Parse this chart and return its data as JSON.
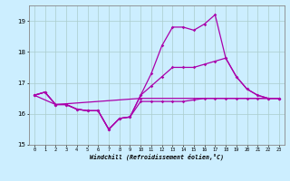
{
  "xlabel": "Windchill (Refroidissement éolien,°C)",
  "bg_color": "#cceeff",
  "line_color": "#aa00aa",
  "grid_color": "#aacccc",
  "xlim": [
    -0.5,
    23.5
  ],
  "ylim": [
    15,
    19.5
  ],
  "yticks": [
    15,
    16,
    17,
    18,
    19
  ],
  "xticks": [
    0,
    1,
    2,
    3,
    4,
    5,
    6,
    7,
    8,
    9,
    10,
    11,
    12,
    13,
    14,
    15,
    16,
    17,
    18,
    19,
    20,
    21,
    22,
    23
  ],
  "line1_x": [
    0,
    1,
    2,
    3,
    4,
    5,
    6,
    7,
    8,
    9,
    10,
    11,
    12,
    13,
    14,
    15,
    16,
    17,
    18,
    19,
    20,
    21,
    22,
    23
  ],
  "line1_y": [
    16.6,
    16.7,
    16.3,
    16.3,
    16.15,
    16.1,
    16.1,
    15.5,
    15.85,
    15.9,
    16.4,
    16.4,
    16.4,
    16.4,
    16.4,
    16.45,
    16.5,
    16.5,
    16.5,
    16.5,
    16.5,
    16.5,
    16.5,
    16.5
  ],
  "line2_x": [
    0,
    1,
    2,
    3,
    4,
    5,
    6,
    7,
    8,
    9,
    10,
    11,
    12,
    13,
    14,
    15,
    16,
    17,
    18,
    19,
    20,
    21,
    22,
    23
  ],
  "line2_y": [
    16.6,
    16.7,
    16.3,
    16.3,
    16.15,
    16.1,
    16.1,
    15.5,
    15.85,
    15.9,
    16.6,
    17.3,
    18.2,
    18.8,
    18.8,
    18.7,
    18.9,
    19.2,
    17.8,
    17.2,
    16.8,
    16.6,
    16.5,
    16.5
  ],
  "line3_x": [
    0,
    1,
    2,
    3,
    4,
    5,
    6,
    7,
    8,
    9,
    10,
    11,
    12,
    13,
    14,
    15,
    16,
    17,
    18,
    19,
    20,
    21,
    22,
    23
  ],
  "line3_y": [
    16.6,
    16.7,
    16.3,
    16.3,
    16.15,
    16.1,
    16.1,
    15.5,
    15.85,
    15.9,
    16.6,
    16.9,
    17.2,
    17.5,
    17.5,
    17.5,
    17.6,
    17.7,
    17.8,
    17.2,
    16.8,
    16.6,
    16.5,
    16.5
  ],
  "line4_x": [
    0,
    2,
    10,
    23
  ],
  "line4_y": [
    16.6,
    16.3,
    16.5,
    16.5
  ]
}
